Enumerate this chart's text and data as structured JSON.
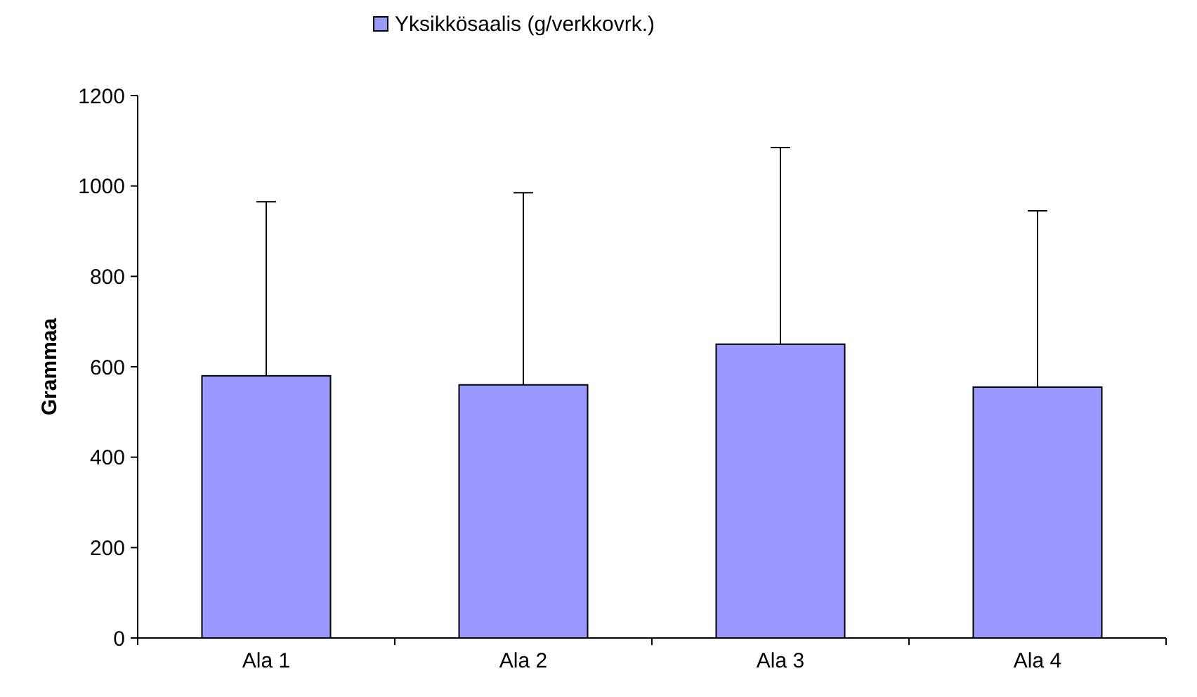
{
  "chart_data": {
    "type": "bar",
    "ylabel": "Grammaa",
    "categories": [
      "Ala 1",
      "Ala 2",
      "Ala 3",
      "Ala 4"
    ],
    "series": [
      {
        "name": "Yksikkösaalis (g/verkkovrk.)",
        "color": "#9999ff",
        "values": [
          580,
          560,
          650,
          555
        ],
        "errors": [
          [
            580,
            965
          ],
          [
            560,
            985
          ],
          [
            650,
            1085
          ],
          [
            555,
            945
          ]
        ]
      }
    ],
    "ylim": [
      0,
      1200
    ],
    "yticks": [
      0,
      200,
      400,
      600,
      800,
      1000,
      1200
    ],
    "legend": "top",
    "grid": false
  }
}
